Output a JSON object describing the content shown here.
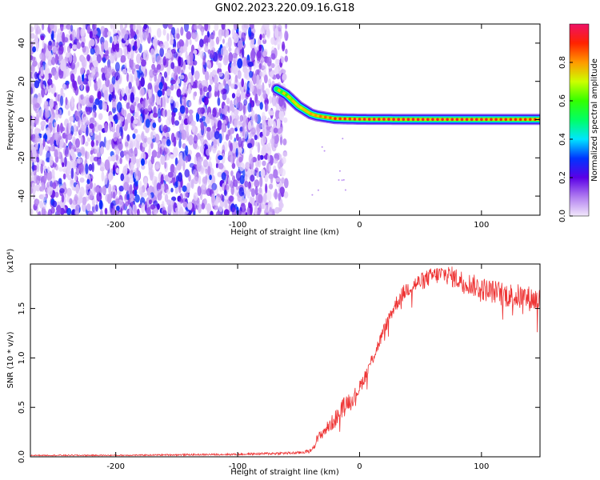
{
  "chart_data": [
    {
      "type": "heatmap",
      "title": "GN02.2023.220.09.16.G18",
      "xlabel": "Height of straight line (km)",
      "ylabel": "Frequency (Hz)",
      "xlim": [
        -270,
        148
      ],
      "ylim": [
        -50,
        50
      ],
      "x_ticks": [
        -200,
        -100,
        0,
        100
      ],
      "y_ticks": [
        -40,
        -20,
        0,
        20,
        40
      ],
      "colorbar": {
        "label": "Normalized spectral amplitude",
        "range": [
          0,
          1
        ],
        "ticks": [
          "0.0",
          "0.2",
          "0.4",
          "0.6",
          "0.8"
        ]
      },
      "ridge": [
        {
          "x": -68,
          "y": 16,
          "amp": 0.5
        },
        {
          "x": -60,
          "y": 13,
          "amp": 0.6
        },
        {
          "x": -55,
          "y": 10,
          "amp": 0.65
        },
        {
          "x": -50,
          "y": 7,
          "amp": 0.7
        },
        {
          "x": -45,
          "y": 5,
          "amp": 0.75
        },
        {
          "x": -40,
          "y": 3,
          "amp": 0.8
        },
        {
          "x": -35,
          "y": 2,
          "amp": 0.8
        },
        {
          "x": -30,
          "y": 1.5,
          "amp": 0.85
        },
        {
          "x": -25,
          "y": 1,
          "amp": 0.85
        },
        {
          "x": -20,
          "y": 0.5,
          "amp": 0.9
        },
        {
          "x": 0,
          "y": 0.2,
          "amp": 0.95
        },
        {
          "x": 50,
          "y": 0.1,
          "amp": 0.95
        },
        {
          "x": 100,
          "y": 0.1,
          "amp": 0.95
        },
        {
          "x": 148,
          "y": 0.1,
          "amp": 0.9
        }
      ],
      "noise_region": {
        "x_from": -270,
        "x_to": -60,
        "amp_range": [
          0.02,
          0.3
        ]
      },
      "grid": false
    },
    {
      "type": "line",
      "xlabel": "Height of straight line (km)",
      "ylabel": "SNR (10 * v/v)",
      "y_scale_label": "(x10⁴)",
      "xlim": [
        -270,
        148
      ],
      "ylim": [
        0,
        19500
      ],
      "x_ticks": [
        -200,
        -100,
        0,
        100
      ],
      "y_ticks": [
        0,
        5000,
        10000,
        15000
      ],
      "y_tick_labels": [
        "0.0",
        "0.5",
        "1.0",
        "1.5"
      ],
      "color": "#ee3333",
      "series": [
        {
          "x": [
            -270,
            -200,
            -100,
            -50,
            -40,
            -35,
            -30,
            -25,
            -20,
            -15,
            -10,
            -5,
            0,
            5,
            10,
            15,
            20,
            25,
            30,
            35,
            40,
            50,
            60,
            70,
            80,
            90,
            100,
            110,
            120,
            130,
            140,
            148
          ],
          "y": [
            150,
            150,
            250,
            400,
            600,
            1700,
            2500,
            3100,
            3800,
            4800,
            5600,
            6000,
            7000,
            8300,
            9800,
            11200,
            12800,
            14300,
            15500,
            16400,
            17100,
            17700,
            18300,
            18500,
            18000,
            17500,
            17000,
            16700,
            16400,
            16200,
            16000,
            15800
          ],
          "noise": [
            60,
            60,
            100,
            150,
            200,
            500,
            600,
            700,
            900,
            900,
            900,
            800,
            700,
            700,
            700,
            700,
            700,
            700,
            800,
            800,
            900,
            900,
            900,
            1000,
            1100,
            1100,
            1200,
            1200,
            1300,
            1300,
            1300,
            1300
          ]
        }
      ],
      "grid": false
    }
  ]
}
